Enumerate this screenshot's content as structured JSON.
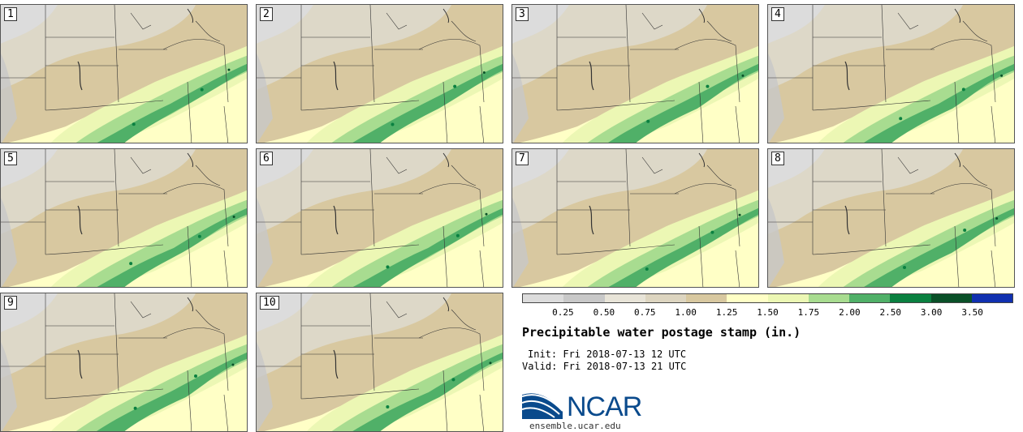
{
  "panels": [
    {
      "label": "1"
    },
    {
      "label": "2"
    },
    {
      "label": "3"
    },
    {
      "label": "4"
    },
    {
      "label": "5"
    },
    {
      "label": "6"
    },
    {
      "label": "7"
    },
    {
      "label": "8"
    },
    {
      "label": "9"
    },
    {
      "label": "10"
    }
  ],
  "legend": {
    "colors": [
      "#dcdcdc",
      "#c8c8c8",
      "#e8e4d8",
      "#ddd5c0",
      "#d8c8a0",
      "#ffffc6",
      "#ecf7b4",
      "#a8dc90",
      "#50b068",
      "#0a8040",
      "#0a5028",
      "#1030b0"
    ],
    "ticks": [
      "0.25",
      "0.50",
      "0.75",
      "1.00",
      "1.25",
      "1.50",
      "1.75",
      "2.00",
      "2.50",
      "3.00",
      "3.50"
    ]
  },
  "title": "Precipitable water postage stamp (in.)",
  "init": "Init: Fri 2018-07-13 12 UTC",
  "valid": "Valid: Fri 2018-07-13 21 UTC",
  "logo": {
    "text": "NCAR",
    "url": "ensemble.ucar.edu"
  }
}
